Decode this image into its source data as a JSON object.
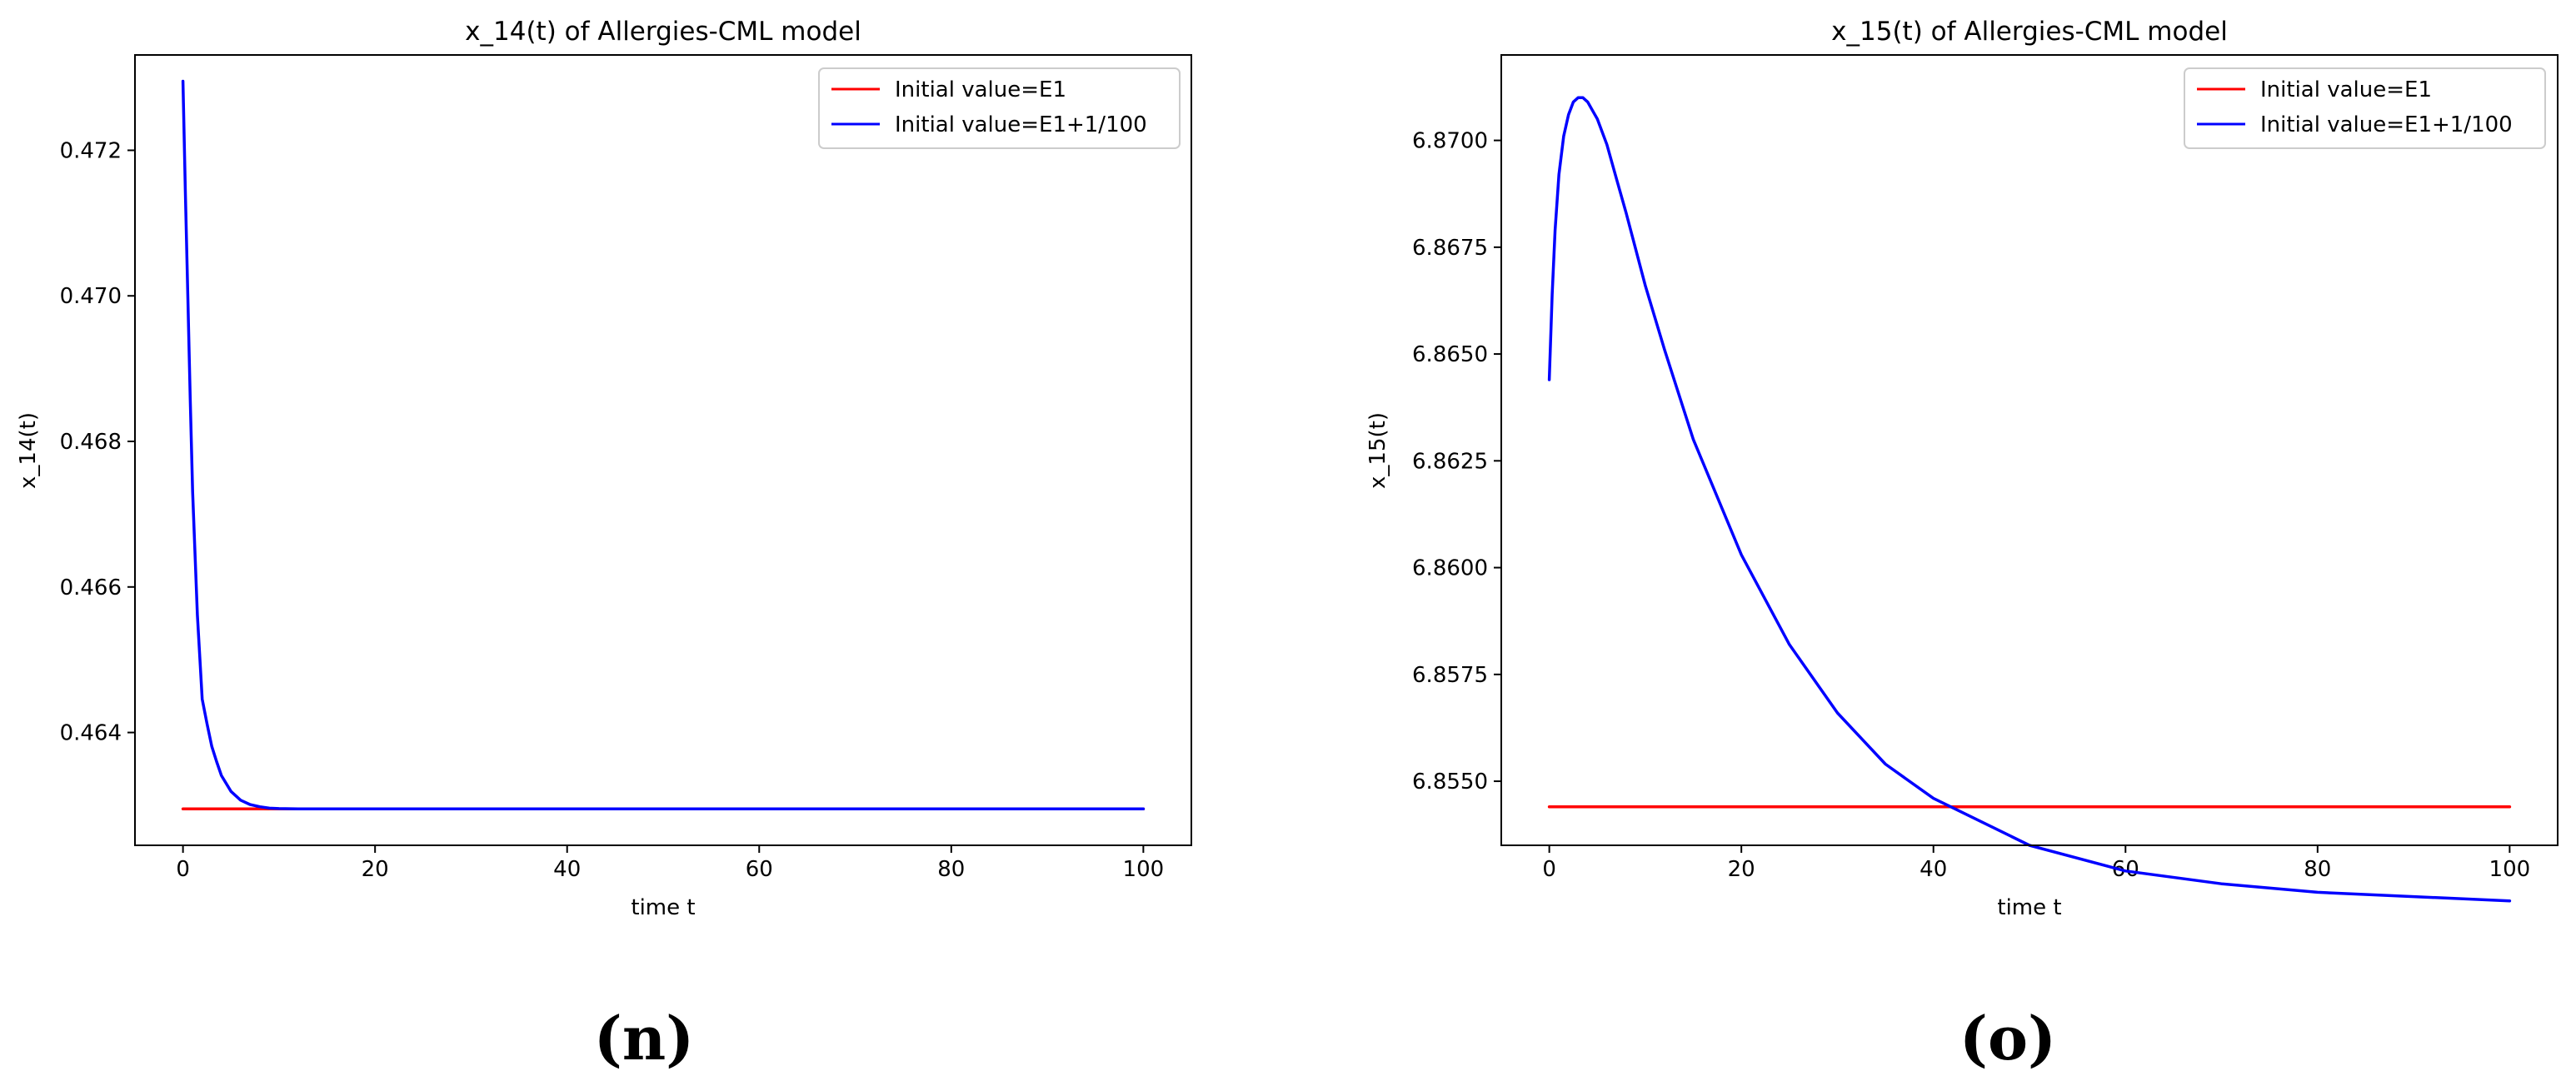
{
  "chart_data": [
    {
      "type": "line",
      "title": "x_14(t) of Allergies-CML model",
      "xlabel": "time t",
      "ylabel": "x_14(t)",
      "xlim": [
        -5,
        105
      ],
      "ylim": [
        0.46245,
        0.47331
      ],
      "xticks": [
        0,
        20,
        40,
        60,
        80,
        100
      ],
      "xtick_labels": [
        "0",
        "20",
        "40",
        "60",
        "80",
        "100"
      ],
      "yticks": [
        0.464,
        0.466,
        0.468,
        0.47,
        0.472
      ],
      "ytick_labels": [
        "0.464",
        "0.466",
        "0.468",
        "0.470",
        "0.472"
      ],
      "legend_position": "top-right",
      "series": [
        {
          "name": "Initial value=E1",
          "color": "#ff0000",
          "x": [
            0,
            10,
            20,
            30,
            40,
            50,
            60,
            70,
            80,
            90,
            100
          ],
          "y": [
            0.46295,
            0.46295,
            0.46295,
            0.46295,
            0.46295,
            0.46295,
            0.46295,
            0.46295,
            0.46295,
            0.46295,
            0.46295
          ]
        },
        {
          "name": "Initial value=E1+1/100",
          "color": "#0000ff",
          "x": [
            0,
            0.25,
            0.5,
            0.75,
            1,
            1.5,
            2,
            2.5,
            3,
            3.5,
            4,
            5,
            6,
            7,
            8,
            9,
            10,
            12,
            14,
            16,
            20,
            30,
            40,
            50,
            60,
            70,
            80,
            90,
            100
          ],
          "y": [
            0.47295,
            0.47142,
            0.47002,
            0.4686,
            0.46731,
            0.46562,
            0.46446,
            0.46412,
            0.46381,
            0.4636,
            0.46341,
            0.46319,
            0.46307,
            0.46301,
            0.46298,
            0.46296,
            0.462955,
            0.46295,
            0.46295,
            0.46295,
            0.46295,
            0.46295,
            0.46295,
            0.46295,
            0.46295,
            0.46295,
            0.46295,
            0.46295,
            0.46295
          ]
        }
      ]
    },
    {
      "type": "line",
      "title": "x_15(t) of Allergies-CML model",
      "xlabel": "time t",
      "ylabel": "x_15(t)",
      "xlim": [
        -5,
        105
      ],
      "ylim": [
        6.8535,
        6.872
      ],
      "xticks": [
        0,
        20,
        40,
        60,
        80,
        100
      ],
      "xtick_labels": [
        "0",
        "20",
        "40",
        "60",
        "80",
        "100"
      ],
      "yticks": [
        6.855,
        6.8575,
        6.86,
        6.8625,
        6.865,
        6.8675,
        6.87
      ],
      "ytick_labels": [
        "6.8550",
        "6.8575",
        "6.8600",
        "6.8625",
        "6.8650",
        "6.8675",
        "6.8700"
      ],
      "legend_position": "top-right",
      "series": [
        {
          "name": "Initial value=E1",
          "color": "#ff0000",
          "x": [
            0,
            10,
            20,
            30,
            40,
            50,
            60,
            70,
            80,
            90,
            100
          ],
          "y": [
            6.8544,
            6.8544,
            6.8544,
            6.8544,
            6.8544,
            6.8544,
            6.8544,
            6.8544,
            6.8544,
            6.8544,
            6.8544
          ]
        },
        {
          "name": "Initial value=E1+1/100",
          "color": "#0000ff",
          "x": [
            0,
            0.3,
            0.6,
            1,
            1.5,
            2,
            2.5,
            3,
            3.5,
            4,
            4.5,
            5,
            6,
            7,
            8,
            10,
            12,
            15,
            20,
            25,
            30,
            35,
            40,
            50,
            60,
            70,
            80,
            90,
            100
          ],
          "y": [
            6.8644,
            6.8664,
            6.8679,
            6.8692,
            6.8701,
            6.8706,
            6.8709,
            6.871,
            6.871,
            6.8709,
            6.8707,
            6.8705,
            6.8699,
            6.8691,
            6.8683,
            6.8666,
            6.8651,
            6.863,
            6.8603,
            6.8582,
            6.8566,
            6.8554,
            6.8546,
            6.8535,
            6.8529,
            6.8526,
            6.8524,
            6.8523,
            6.8522
          ]
        }
      ]
    }
  ],
  "subfigure_labels": [
    "(n)",
    "(o)"
  ]
}
